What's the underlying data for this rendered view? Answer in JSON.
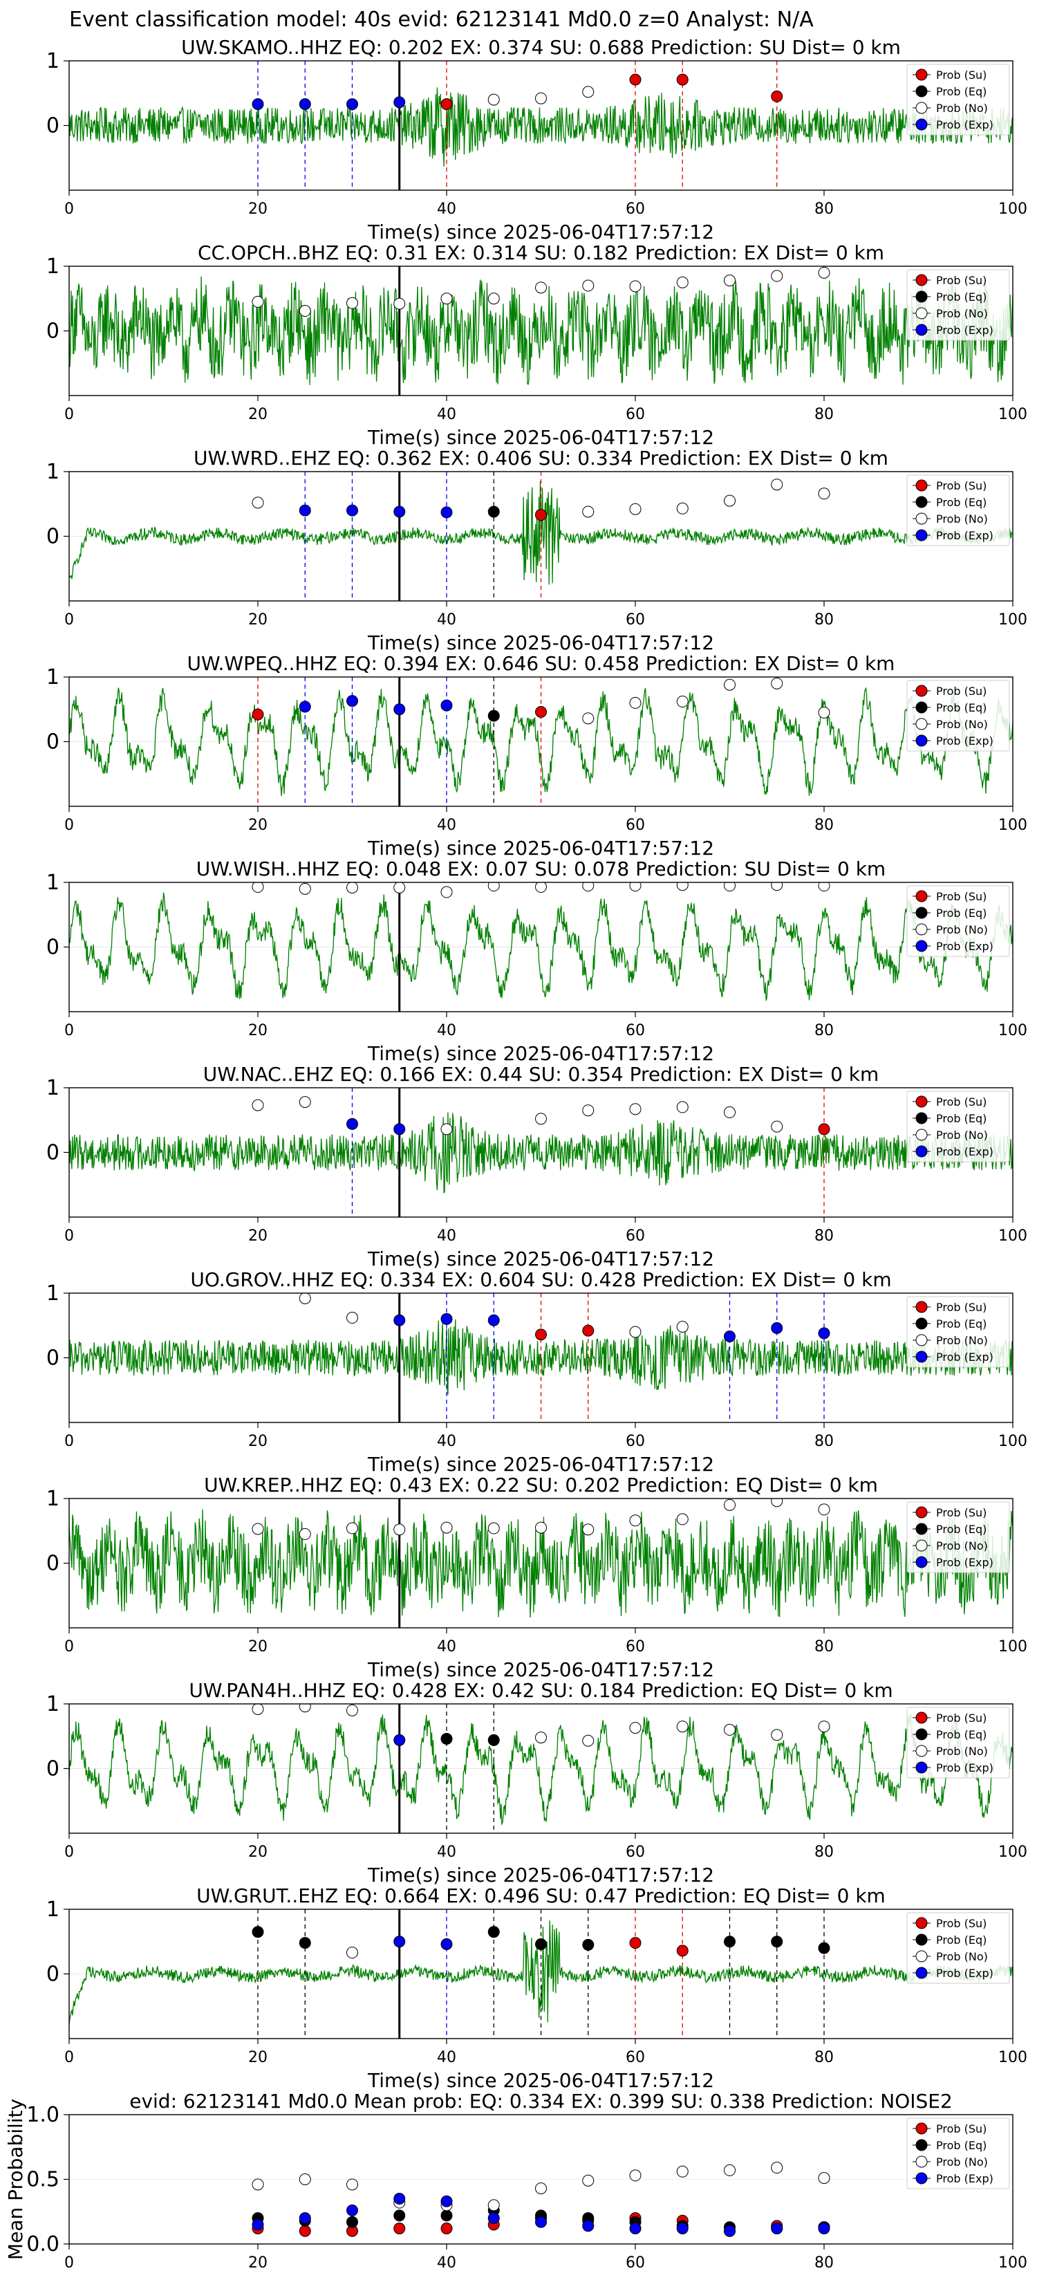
{
  "figure_title": "Event classification model: 40s evid: 62123141 Md0.0 z=0 Analyst: N/A",
  "colors": {
    "waveform": "#008000",
    "su": "#e00000",
    "eq": "#000000",
    "no": "#ffffff",
    "exp": "#0000ee"
  },
  "legend_labels": [
    "Prob (Su)",
    "Prob (Eq)",
    "Prob (No)",
    "Prob (Exp)"
  ],
  "chart_data": [
    {
      "type": "line",
      "station": "UW.SKAMO..HHZ",
      "title": "UW.SKAMO..HHZ   EQ: 0.202  EX: 0.374  SU: 0.688   Prediction: SU    Dist= 0 km",
      "xlabel": "Time(s) since 2025-06-04T17:57:12",
      "xlim": [
        0,
        100
      ],
      "ylim": [
        -1,
        1
      ],
      "xticks": [
        0,
        20,
        40,
        60,
        80,
        100
      ],
      "yticks": [
        0,
        1
      ],
      "waveform_style": "noisy",
      "origin_time": 35,
      "points": [
        {
          "x": 20,
          "y": 0.33,
          "cls": "exp"
        },
        {
          "x": 25,
          "y": 0.33,
          "cls": "exp"
        },
        {
          "x": 30,
          "y": 0.33,
          "cls": "exp"
        },
        {
          "x": 35,
          "y": 0.36,
          "cls": "exp"
        },
        {
          "x": 40,
          "y": 0.33,
          "cls": "su"
        },
        {
          "x": 45,
          "y": 0.4,
          "cls": "no"
        },
        {
          "x": 50,
          "y": 0.42,
          "cls": "no"
        },
        {
          "x": 55,
          "y": 0.52,
          "cls": "no"
        },
        {
          "x": 60,
          "y": 0.71,
          "cls": "su"
        },
        {
          "x": 65,
          "y": 0.71,
          "cls": "su"
        },
        {
          "x": 75,
          "y": 0.45,
          "cls": "su"
        }
      ]
    },
    {
      "type": "line",
      "station": "CC.OPCH..BHZ",
      "title": "CC.OPCH..BHZ   EQ: 0.31  EX: 0.314  SU: 0.182   Prediction: EX    Dist= 0 km",
      "xlabel": "Time(s) since 2025-06-04T17:57:12",
      "xlim": [
        0,
        100
      ],
      "ylim": [
        -1,
        1
      ],
      "xticks": [
        0,
        20,
        40,
        60,
        80,
        100
      ],
      "yticks": [
        0,
        1
      ],
      "waveform_style": "dense",
      "origin_time": 35,
      "points": [
        {
          "x": 20,
          "y": 0.45,
          "cls": "no"
        },
        {
          "x": 25,
          "y": 0.31,
          "cls": "no"
        },
        {
          "x": 30,
          "y": 0.43,
          "cls": "no"
        },
        {
          "x": 35,
          "y": 0.42,
          "cls": "no"
        },
        {
          "x": 40,
          "y": 0.5,
          "cls": "no"
        },
        {
          "x": 45,
          "y": 0.5,
          "cls": "no"
        },
        {
          "x": 50,
          "y": 0.67,
          "cls": "no"
        },
        {
          "x": 55,
          "y": 0.7,
          "cls": "no"
        },
        {
          "x": 60,
          "y": 0.69,
          "cls": "no"
        },
        {
          "x": 65,
          "y": 0.75,
          "cls": "no"
        },
        {
          "x": 70,
          "y": 0.78,
          "cls": "no"
        },
        {
          "x": 75,
          "y": 0.85,
          "cls": "no"
        },
        {
          "x": 80,
          "y": 0.9,
          "cls": "no"
        }
      ]
    },
    {
      "type": "line",
      "station": "UW.WRD..EHZ",
      "title": "UW.WRD..EHZ   EQ: 0.362  EX: 0.406  SU: 0.334   Prediction: EX    Dist= 0 km",
      "xlabel": "Time(s) since 2025-06-04T17:57:12",
      "xlim": [
        0,
        100
      ],
      "ylim": [
        -1,
        1
      ],
      "xticks": [
        0,
        20,
        40,
        60,
        80,
        100
      ],
      "yticks": [
        0,
        1
      ],
      "waveform_style": "quiet",
      "origin_time": 35,
      "points": [
        {
          "x": 20,
          "y": 0.52,
          "cls": "no"
        },
        {
          "x": 25,
          "y": 0.4,
          "cls": "exp"
        },
        {
          "x": 30,
          "y": 0.4,
          "cls": "exp"
        },
        {
          "x": 35,
          "y": 0.38,
          "cls": "exp"
        },
        {
          "x": 40,
          "y": 0.37,
          "cls": "exp"
        },
        {
          "x": 45,
          "y": 0.38,
          "cls": "eq"
        },
        {
          "x": 50,
          "y": 0.33,
          "cls": "su"
        },
        {
          "x": 55,
          "y": 0.38,
          "cls": "no"
        },
        {
          "x": 60,
          "y": 0.42,
          "cls": "no"
        },
        {
          "x": 65,
          "y": 0.43,
          "cls": "no"
        },
        {
          "x": 70,
          "y": 0.55,
          "cls": "no"
        },
        {
          "x": 75,
          "y": 0.8,
          "cls": "no"
        },
        {
          "x": 80,
          "y": 0.66,
          "cls": "no"
        }
      ]
    },
    {
      "type": "line",
      "station": "UW.WPEQ..HHZ",
      "title": "UW.WPEQ..HHZ   EQ: 0.394  EX: 0.646  SU: 0.458   Prediction: EX    Dist= 0 km",
      "xlabel": "Time(s) since 2025-06-04T17:57:12",
      "xlim": [
        0,
        100
      ],
      "ylim": [
        -1,
        1
      ],
      "xticks": [
        0,
        20,
        40,
        60,
        80,
        100
      ],
      "yticks": [
        0,
        1
      ],
      "waveform_style": "wavy",
      "origin_time": 35,
      "points": [
        {
          "x": 20,
          "y": 0.42,
          "cls": "su"
        },
        {
          "x": 25,
          "y": 0.54,
          "cls": "exp"
        },
        {
          "x": 30,
          "y": 0.63,
          "cls": "exp"
        },
        {
          "x": 35,
          "y": 0.5,
          "cls": "exp"
        },
        {
          "x": 40,
          "y": 0.56,
          "cls": "exp"
        },
        {
          "x": 45,
          "y": 0.4,
          "cls": "eq"
        },
        {
          "x": 50,
          "y": 0.46,
          "cls": "su"
        },
        {
          "x": 55,
          "y": 0.36,
          "cls": "no"
        },
        {
          "x": 60,
          "y": 0.6,
          "cls": "no"
        },
        {
          "x": 65,
          "y": 0.62,
          "cls": "no"
        },
        {
          "x": 70,
          "y": 0.88,
          "cls": "no"
        },
        {
          "x": 75,
          "y": 0.9,
          "cls": "no"
        },
        {
          "x": 80,
          "y": 0.45,
          "cls": "no"
        }
      ]
    },
    {
      "type": "line",
      "station": "UW.WISH..HHZ",
      "title": "UW.WISH..HHZ   EQ: 0.048  EX: 0.07  SU: 0.078   Prediction: SU    Dist= 0 km",
      "xlabel": "Time(s) since 2025-06-04T17:57:12",
      "xlim": [
        0,
        100
      ],
      "ylim": [
        -1,
        1
      ],
      "xticks": [
        0,
        20,
        40,
        60,
        80,
        100
      ],
      "yticks": [
        0,
        1
      ],
      "waveform_style": "wavy",
      "origin_time": 35,
      "points": [
        {
          "x": 20,
          "y": 0.93,
          "cls": "no"
        },
        {
          "x": 25,
          "y": 0.9,
          "cls": "no"
        },
        {
          "x": 30,
          "y": 0.92,
          "cls": "no"
        },
        {
          "x": 35,
          "y": 0.92,
          "cls": "no"
        },
        {
          "x": 40,
          "y": 0.85,
          "cls": "no"
        },
        {
          "x": 45,
          "y": 0.95,
          "cls": "no"
        },
        {
          "x": 50,
          "y": 0.93,
          "cls": "no"
        },
        {
          "x": 55,
          "y": 0.95,
          "cls": "no"
        },
        {
          "x": 60,
          "y": 0.95,
          "cls": "no"
        },
        {
          "x": 65,
          "y": 0.96,
          "cls": "no"
        },
        {
          "x": 70,
          "y": 0.95,
          "cls": "no"
        },
        {
          "x": 75,
          "y": 0.96,
          "cls": "no"
        },
        {
          "x": 80,
          "y": 0.95,
          "cls": "no"
        }
      ]
    },
    {
      "type": "line",
      "station": "UW.NAC..EHZ",
      "title": "UW.NAC..EHZ   EQ: 0.166  EX: 0.44  SU: 0.354   Prediction: EX    Dist= 0 km",
      "xlabel": "Time(s) since 2025-06-04T17:57:12",
      "xlim": [
        0,
        100
      ],
      "ylim": [
        -1,
        1
      ],
      "xticks": [
        0,
        20,
        40,
        60,
        80,
        100
      ],
      "yticks": [
        0,
        1
      ],
      "waveform_style": "noisy",
      "origin_time": 35,
      "points": [
        {
          "x": 20,
          "y": 0.73,
          "cls": "no"
        },
        {
          "x": 25,
          "y": 0.78,
          "cls": "no"
        },
        {
          "x": 30,
          "y": 0.44,
          "cls": "exp"
        },
        {
          "x": 35,
          "y": 0.36,
          "cls": "exp"
        },
        {
          "x": 40,
          "y": 0.36,
          "cls": "no"
        },
        {
          "x": 50,
          "y": 0.52,
          "cls": "no"
        },
        {
          "x": 55,
          "y": 0.65,
          "cls": "no"
        },
        {
          "x": 60,
          "y": 0.67,
          "cls": "no"
        },
        {
          "x": 65,
          "y": 0.7,
          "cls": "no"
        },
        {
          "x": 70,
          "y": 0.62,
          "cls": "no"
        },
        {
          "x": 75,
          "y": 0.4,
          "cls": "no"
        },
        {
          "x": 80,
          "y": 0.36,
          "cls": "su"
        }
      ]
    },
    {
      "type": "line",
      "station": "UO.GROV..HHZ",
      "title": "UO.GROV..HHZ   EQ: 0.334  EX: 0.604  SU: 0.428   Prediction: EX    Dist= 0 km",
      "xlabel": "Time(s) since 2025-06-04T17:57:12",
      "xlim": [
        0,
        100
      ],
      "ylim": [
        -1,
        1
      ],
      "xticks": [
        0,
        20,
        40,
        60,
        80,
        100
      ],
      "yticks": [
        0,
        1
      ],
      "waveform_style": "noisy",
      "origin_time": 35,
      "points": [
        {
          "x": 25,
          "y": 0.92,
          "cls": "no"
        },
        {
          "x": 30,
          "y": 0.62,
          "cls": "no"
        },
        {
          "x": 35,
          "y": 0.58,
          "cls": "exp"
        },
        {
          "x": 40,
          "y": 0.6,
          "cls": "exp"
        },
        {
          "x": 45,
          "y": 0.58,
          "cls": "exp"
        },
        {
          "x": 50,
          "y": 0.36,
          "cls": "su"
        },
        {
          "x": 55,
          "y": 0.42,
          "cls": "su"
        },
        {
          "x": 60,
          "y": 0.4,
          "cls": "no"
        },
        {
          "x": 65,
          "y": 0.48,
          "cls": "no"
        },
        {
          "x": 70,
          "y": 0.33,
          "cls": "exp"
        },
        {
          "x": 75,
          "y": 0.46,
          "cls": "exp"
        },
        {
          "x": 80,
          "y": 0.38,
          "cls": "exp"
        }
      ]
    },
    {
      "type": "line",
      "station": "UW.KREP..HHZ",
      "title": "UW.KREP..HHZ   EQ: 0.43  EX: 0.22  SU: 0.202   Prediction: EQ    Dist= 0 km",
      "xlabel": "Time(s) since 2025-06-04T17:57:12",
      "xlim": [
        0,
        100
      ],
      "ylim": [
        -1,
        1
      ],
      "xticks": [
        0,
        20,
        40,
        60,
        80,
        100
      ],
      "yticks": [
        0,
        1
      ],
      "waveform_style": "dense",
      "origin_time": 35,
      "points": [
        {
          "x": 20,
          "y": 0.53,
          "cls": "no"
        },
        {
          "x": 25,
          "y": 0.45,
          "cls": "no"
        },
        {
          "x": 30,
          "y": 0.54,
          "cls": "no"
        },
        {
          "x": 35,
          "y": 0.52,
          "cls": "no"
        },
        {
          "x": 40,
          "y": 0.55,
          "cls": "no"
        },
        {
          "x": 45,
          "y": 0.54,
          "cls": "no"
        },
        {
          "x": 50,
          "y": 0.55,
          "cls": "no"
        },
        {
          "x": 55,
          "y": 0.52,
          "cls": "no"
        },
        {
          "x": 60,
          "y": 0.66,
          "cls": "no"
        },
        {
          "x": 65,
          "y": 0.68,
          "cls": "no"
        },
        {
          "x": 70,
          "y": 0.9,
          "cls": "no"
        },
        {
          "x": 75,
          "y": 0.96,
          "cls": "no"
        },
        {
          "x": 80,
          "y": 0.83,
          "cls": "no"
        }
      ]
    },
    {
      "type": "line",
      "station": "UW.PAN4H..HHZ",
      "title": "UW.PAN4H..HHZ   EQ: 0.428  EX: 0.42  SU: 0.184   Prediction: EQ    Dist= 0 km",
      "xlabel": "Time(s) since 2025-06-04T17:57:12",
      "xlim": [
        0,
        100
      ],
      "ylim": [
        -1,
        1
      ],
      "xticks": [
        0,
        20,
        40,
        60,
        80,
        100
      ],
      "yticks": [
        0,
        1
      ],
      "waveform_style": "wavy",
      "origin_time": 35,
      "points": [
        {
          "x": 20,
          "y": 0.92,
          "cls": "no"
        },
        {
          "x": 25,
          "y": 0.96,
          "cls": "no"
        },
        {
          "x": 30,
          "y": 0.9,
          "cls": "no"
        },
        {
          "x": 35,
          "y": 0.44,
          "cls": "exp"
        },
        {
          "x": 40,
          "y": 0.46,
          "cls": "eq"
        },
        {
          "x": 45,
          "y": 0.44,
          "cls": "eq"
        },
        {
          "x": 50,
          "y": 0.48,
          "cls": "no"
        },
        {
          "x": 55,
          "y": 0.43,
          "cls": "no"
        },
        {
          "x": 60,
          "y": 0.63,
          "cls": "no"
        },
        {
          "x": 65,
          "y": 0.65,
          "cls": "no"
        },
        {
          "x": 70,
          "y": 0.6,
          "cls": "no"
        },
        {
          "x": 75,
          "y": 0.52,
          "cls": "no"
        },
        {
          "x": 80,
          "y": 0.65,
          "cls": "no"
        }
      ]
    },
    {
      "type": "line",
      "station": "UW.GRUT..EHZ",
      "title": "UW.GRUT..EHZ   EQ: 0.664  EX: 0.496  SU: 0.47   Prediction: EQ    Dist= 0 km",
      "xlabel": "Time(s) since 2025-06-04T17:57:12",
      "xlim": [
        0,
        100
      ],
      "ylim": [
        -1,
        1
      ],
      "xticks": [
        0,
        20,
        40,
        60,
        80,
        100
      ],
      "yticks": [
        0,
        1
      ],
      "waveform_style": "quiet",
      "origin_time": 35,
      "points": [
        {
          "x": 20,
          "y": 0.65,
          "cls": "eq"
        },
        {
          "x": 25,
          "y": 0.48,
          "cls": "eq"
        },
        {
          "x": 30,
          "y": 0.33,
          "cls": "no"
        },
        {
          "x": 35,
          "y": 0.5,
          "cls": "exp"
        },
        {
          "x": 40,
          "y": 0.46,
          "cls": "exp"
        },
        {
          "x": 45,
          "y": 0.65,
          "cls": "eq"
        },
        {
          "x": 50,
          "y": 0.46,
          "cls": "eq"
        },
        {
          "x": 55,
          "y": 0.45,
          "cls": "eq"
        },
        {
          "x": 60,
          "y": 0.48,
          "cls": "su"
        },
        {
          "x": 65,
          "y": 0.36,
          "cls": "su"
        },
        {
          "x": 70,
          "y": 0.5,
          "cls": "eq"
        },
        {
          "x": 75,
          "y": 0.5,
          "cls": "eq"
        },
        {
          "x": 80,
          "y": 0.4,
          "cls": "eq"
        }
      ]
    },
    {
      "type": "scatter",
      "title": "evid: 62123141  Md0.0   Mean prob:   EQ: 0.334  EX: 0.399  SU: 0.338   Prediction: NOISE2",
      "xlabel": "",
      "ylabel": "Mean Probability",
      "xlim": [
        0,
        100
      ],
      "ylim": [
        0,
        1
      ],
      "xticks": [
        0,
        20,
        40,
        60,
        80,
        100
      ],
      "yticks": [
        0.0,
        0.5,
        1.0
      ],
      "ytick_labels": [
        "0.0",
        "0.5",
        "1.0"
      ],
      "x": [
        20,
        25,
        30,
        35,
        40,
        45,
        50,
        55,
        60,
        65,
        70,
        75,
        80
      ],
      "series": [
        {
          "cls": "su",
          "values": [
            0.12,
            0.1,
            0.1,
            0.12,
            0.12,
            0.15,
            0.2,
            0.18,
            0.2,
            0.18,
            0.1,
            0.14,
            0.13
          ]
        },
        {
          "cls": "eq",
          "values": [
            0.2,
            0.18,
            0.17,
            0.22,
            0.22,
            0.26,
            0.22,
            0.2,
            0.17,
            0.14,
            0.13,
            0.12,
            0.13
          ]
        },
        {
          "cls": "no",
          "values": [
            0.46,
            0.5,
            0.46,
            0.32,
            0.3,
            0.3,
            0.43,
            0.49,
            0.53,
            0.56,
            0.57,
            0.59,
            0.51
          ]
        },
        {
          "cls": "exp",
          "values": [
            0.15,
            0.2,
            0.26,
            0.35,
            0.33,
            0.2,
            0.17,
            0.14,
            0.12,
            0.12,
            0.1,
            0.12,
            0.12
          ]
        }
      ]
    }
  ]
}
